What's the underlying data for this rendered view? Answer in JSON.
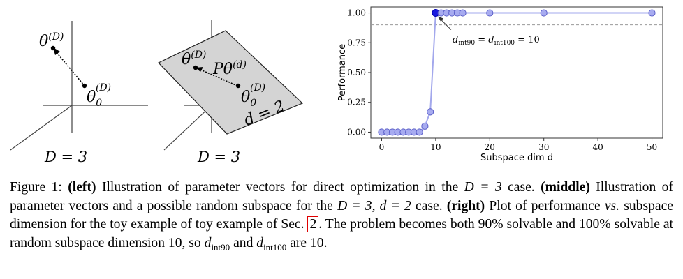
{
  "left_panel": {
    "theta_D": "θ",
    "theta_D_sup": "(D)",
    "theta0": "θ",
    "theta0_sub": "0",
    "theta0_sup": "(D)",
    "dim_label": "D = 3"
  },
  "middle_panel": {
    "theta_D": "θ",
    "theta_D_sup": "(D)",
    "projection": "Pθ",
    "projection_sup": "(d)",
    "theta0": "θ",
    "theta0_sub": "0",
    "theta0_sup": "(D)",
    "subspace_label": "d = 2",
    "dim_label": "D = 3"
  },
  "chart_data": {
    "type": "line",
    "xlabel": "Subspace dim d",
    "ylabel": "Performance",
    "xlim": [
      -2,
      52
    ],
    "ylim": [
      -0.05,
      1.05
    ],
    "xticks": [
      0,
      10,
      20,
      30,
      40,
      50
    ],
    "yticks": [
      0.0,
      0.25,
      0.5,
      0.75,
      1.0
    ],
    "ytick_labels": [
      "0.00",
      "0.25",
      "0.50",
      "0.75",
      "1.00"
    ],
    "threshold": 0.9,
    "series": [
      {
        "x": [
          0,
          1,
          2,
          3,
          4,
          5,
          6,
          7,
          8,
          9,
          10,
          11,
          12,
          13,
          14,
          15,
          20,
          30,
          50
        ],
        "values": [
          0,
          0,
          0,
          0,
          0,
          0,
          0,
          0,
          0.05,
          0.17,
          1,
          1,
          1,
          1,
          1,
          1,
          1,
          1,
          1
        ]
      }
    ],
    "highlight_x": 10,
    "annotation": {
      "prefix": "d",
      "sub1": "int90",
      "mid": " = d",
      "sub2": "int100",
      "suffix": " = 10"
    }
  },
  "caption": {
    "fig": "Figure 1:",
    "left_b": "(left)",
    "t1": " Illustration of parameter vectors for direct optimization in the ",
    "m1": "D = 3",
    "t2": " case. ",
    "middle_b": "(middle)",
    "t3": " Illustration of parameter vectors and a possible random subspace for the ",
    "m2": "D = 3, d = 2",
    "t4": " case. ",
    "right_b": "(right)",
    "t5": " Plot of performance ",
    "vs": "vs.",
    "t6": " subspace dimension for the toy example of toy example of Sec. ",
    "ref": "2",
    "t7": ". The problem becomes both 90% solvable and 100% solvable at random subspace dimension 10, so ",
    "d1": "d",
    "d1sub": "int90",
    "t8": " and ",
    "d2": "d",
    "d2sub": "int100",
    "t9": " are 10."
  }
}
